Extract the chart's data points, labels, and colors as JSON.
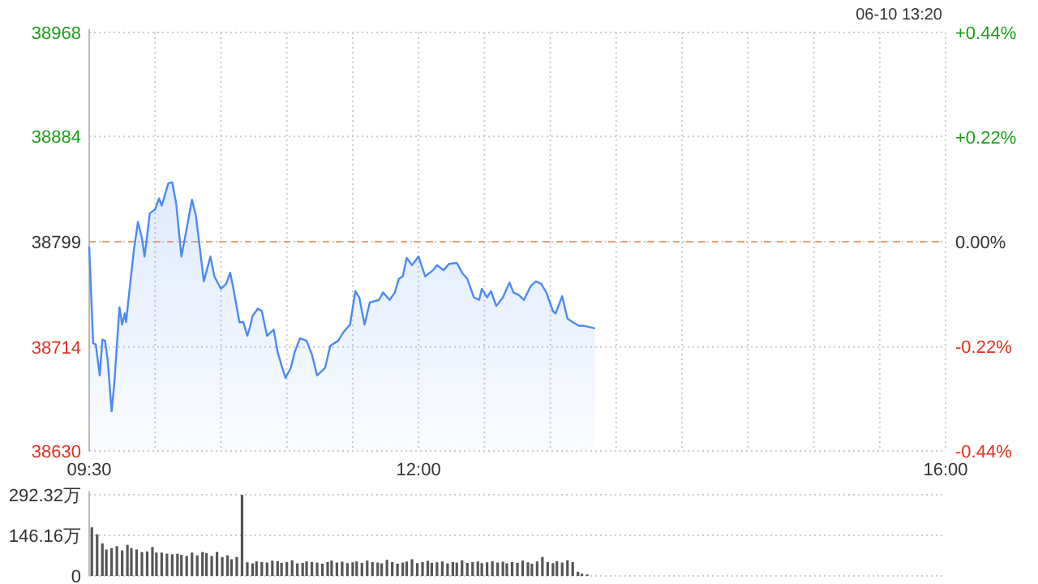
{
  "chart_data": [
    {
      "type": "area",
      "annotations": [
        "06-10 13:20"
      ],
      "xlim": [
        9.5,
        16
      ],
      "xticks": [
        {
          "value": 9.5,
          "label": "09:30"
        },
        {
          "value": 10,
          "label": null
        },
        {
          "value": 10.5,
          "label": null
        },
        {
          "value": 11,
          "label": null
        },
        {
          "value": 11.5,
          "label": null
        },
        {
          "value": 12,
          "label": "12:00"
        },
        {
          "value": 12.5,
          "label": null
        },
        {
          "value": 13,
          "label": null
        },
        {
          "value": 13.5,
          "label": null
        },
        {
          "value": 14,
          "label": null
        },
        {
          "value": 14.5,
          "label": null
        },
        {
          "value": 15,
          "label": null
        },
        {
          "value": 15.5,
          "label": null
        },
        {
          "value": 16,
          "label": "16:00"
        }
      ],
      "ylim": [
        38630,
        38968
      ],
      "yticks": [
        38630,
        38714,
        38799,
        38884,
        38968
      ],
      "y2lim": [
        -0.44,
        0.44
      ],
      "y2ticks": [
        {
          "value": -0.44,
          "label": "-0.44%"
        },
        {
          "value": -0.22,
          "label": "-0.22%"
        },
        {
          "value": 0,
          "label": "0.00%"
        },
        {
          "value": 0.22,
          "label": "+0.22%"
        },
        {
          "value": 0.44,
          "label": "+0.44%"
        }
      ],
      "grid": true,
      "ref_lines": [
        {
          "axis": "y",
          "value": 38799,
          "color": "#f0a070",
          "line_style": "dashed"
        }
      ],
      "series": [
        {
          "color": "#4a8af4",
          "x": [
            9.5,
            9.53,
            9.55,
            9.58,
            9.6,
            9.62,
            9.64,
            9.67,
            9.69,
            9.73,
            9.75,
            9.77,
            9.78,
            9.81,
            9.84,
            9.87,
            9.9,
            9.92,
            9.96,
            10.0,
            10.03,
            10.05,
            10.1,
            10.13,
            10.16,
            10.2,
            10.23,
            10.28,
            10.31,
            10.37,
            10.42,
            10.45,
            10.5,
            10.54,
            10.57,
            10.6,
            10.64,
            10.67,
            10.7,
            10.72,
            10.74,
            10.78,
            10.81,
            10.85,
            10.9,
            10.93,
            10.96,
            10.99,
            11.03,
            11.06,
            11.1,
            11.15,
            11.19,
            11.23,
            11.29,
            11.33,
            11.39,
            11.43,
            11.48,
            11.52,
            11.55,
            11.59,
            11.63,
            11.7,
            11.73,
            11.78,
            11.82,
            11.85,
            11.88,
            11.91,
            11.95,
            12.0,
            12.05,
            12.11,
            12.14,
            12.19,
            12.23,
            12.29,
            12.33,
            12.37,
            12.42,
            12.46,
            12.48,
            12.52,
            12.55,
            12.59,
            12.64,
            12.69,
            12.72,
            12.76,
            12.8,
            12.85,
            12.89,
            12.93,
            12.97,
            13.02,
            13.04,
            13.09,
            13.13,
            13.17,
            13.22,
            13.26,
            13.3,
            13.34
          ],
          "values": [
            38795,
            38717,
            38716,
            38691,
            38720,
            38719,
            38704,
            38662,
            38684,
            38746,
            38732,
            38741,
            38734,
            38764,
            38793,
            38815,
            38802,
            38787,
            38822,
            38825,
            38834,
            38828,
            38846,
            38847,
            38830,
            38787,
            38804,
            38833,
            38820,
            38767,
            38787,
            38771,
            38761,
            38765,
            38774,
            38758,
            38734,
            38734,
            38723,
            38730,
            38739,
            38745,
            38743,
            38723,
            38728,
            38710,
            38699,
            38689,
            38697,
            38710,
            38721,
            38719,
            38708,
            38691,
            38697,
            38715,
            38719,
            38726,
            38732,
            38759,
            38754,
            38732,
            38750,
            38752,
            38758,
            38752,
            38758,
            38769,
            38771,
            38786,
            38780,
            38787,
            38771,
            38776,
            38780,
            38776,
            38781,
            38782,
            38774,
            38769,
            38754,
            38752,
            38761,
            38754,
            38759,
            38747,
            38754,
            38766,
            38758,
            38756,
            38752,
            38763,
            38767,
            38765,
            38758,
            38743,
            38741,
            38755,
            38737,
            38734,
            38731,
            38731,
            38730,
            38729
          ]
        }
      ]
    },
    {
      "type": "bar",
      "xlim": [
        9.5,
        16
      ],
      "ylim": [
        0,
        292.32
      ],
      "yticks": [
        {
          "value": 0,
          "label": "0"
        },
        {
          "value": 146.16,
          "label": "146.16万"
        },
        {
          "value": 292.32,
          "label": "292.32万"
        }
      ],
      "grid": "y",
      "tick_labels": "y",
      "series": [
        {
          "color": "#555555",
          "x": [
            9.52,
            9.56,
            9.6,
            9.63,
            9.67,
            9.71,
            9.75,
            9.79,
            9.82,
            9.86,
            9.9,
            9.94,
            9.98,
            10.01,
            10.05,
            10.09,
            10.13,
            10.17,
            10.2,
            10.24,
            10.28,
            10.32,
            10.36,
            10.39,
            10.43,
            10.47,
            10.51,
            10.55,
            10.58,
            10.62,
            10.66,
            10.7,
            10.74,
            10.77,
            10.81,
            10.85,
            10.89,
            10.93,
            10.96,
            11.0,
            11.04,
            11.08,
            11.12,
            11.15,
            11.19,
            11.23,
            11.27,
            11.31,
            11.34,
            11.38,
            11.42,
            11.46,
            11.5,
            11.53,
            11.57,
            11.61,
            11.65,
            11.69,
            11.72,
            11.76,
            11.8,
            11.84,
            11.88,
            11.91,
            11.95,
            11.99,
            12.03,
            12.07,
            12.1,
            12.14,
            12.18,
            12.22,
            12.26,
            12.29,
            12.33,
            12.37,
            12.41,
            12.45,
            12.48,
            12.52,
            12.56,
            12.6,
            12.64,
            12.67,
            12.71,
            12.75,
            12.79,
            12.83,
            12.86,
            12.9,
            12.94,
            12.98,
            13.02,
            13.05,
            13.09,
            13.13,
            13.17,
            13.21,
            13.24,
            13.28
          ],
          "values": [
            175,
            150,
            117,
            95,
            100,
            107,
            92,
            112,
            100,
            95,
            86,
            88,
            104,
            84,
            84,
            80,
            78,
            80,
            76,
            72,
            84,
            74,
            86,
            82,
            72,
            86,
            68,
            74,
            60,
            68,
            292,
            49,
            45,
            52,
            50,
            48,
            55,
            53,
            47,
            50,
            56,
            45,
            47,
            52,
            50,
            48,
            44,
            50,
            55,
            48,
            51,
            46,
            49,
            52,
            47,
            55,
            50,
            48,
            45,
            58,
            50,
            44,
            48,
            52,
            60,
            46,
            50,
            54,
            47,
            49,
            52,
            45,
            50,
            48,
            56,
            47,
            50,
            52,
            46,
            49,
            53,
            48,
            51,
            45,
            50,
            47,
            55,
            49,
            44,
            52,
            68,
            50,
            46,
            53,
            48,
            56,
            50,
            15,
            8,
            5
          ]
        }
      ]
    }
  ]
}
